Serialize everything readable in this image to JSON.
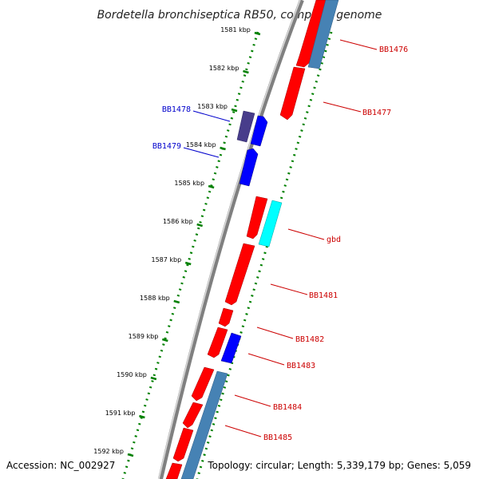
{
  "title": "Bordetella bronchiseptica RB50, complete genome",
  "footer": {
    "accession": "Accession: NC_002927",
    "topology": "Topology: circular; Length: 5,339,179 bp; Genes: 5,059"
  },
  "colors": {
    "forward_gene": "#ff0000",
    "reverse_gene": "#0000ff",
    "other_gene": "#4682b4",
    "rna_gene": "#00ffff",
    "dark_gene": "#483d8b",
    "backbone": "#808080",
    "tick_mark": "#008000",
    "label_forward": "#cc0000",
    "label_reverse": "#0000cc"
  },
  "ticks": [
    {
      "kbp": 1581,
      "label": "1581 kbp"
    },
    {
      "kbp": 1582,
      "label": "1582 kbp"
    },
    {
      "kbp": 1583,
      "label": "1583 kbp"
    },
    {
      "kbp": 1584,
      "label": "1584 kbp"
    },
    {
      "kbp": 1585,
      "label": "1585 kbp"
    },
    {
      "kbp": 1586,
      "label": "1586 kbp"
    },
    {
      "kbp": 1587,
      "label": "1587 kbp"
    },
    {
      "kbp": 1588,
      "label": "1588 kbp"
    },
    {
      "kbp": 1589,
      "label": "1589 kbp"
    },
    {
      "kbp": 1590,
      "label": "1590 kbp"
    },
    {
      "kbp": 1591,
      "label": "1591 kbp"
    },
    {
      "kbp": 1592,
      "label": "1592 kbp"
    }
  ],
  "genes": [
    {
      "name": "BB1476",
      "kbp": 1581.5
    },
    {
      "name": "BB1477",
      "kbp": 1582.5
    },
    {
      "name": "BB1478",
      "kbp": 1583.3
    },
    {
      "name": "BB1479",
      "kbp": 1584.2
    },
    {
      "name": "gbd",
      "kbp": 1586.4
    },
    {
      "name": "BB1481",
      "kbp": 1587.7
    },
    {
      "name": "BB1482",
      "kbp": 1588.8
    },
    {
      "name": "BB1483",
      "kbp": 1589.4
    },
    {
      "name": "BB1484",
      "kbp": 1590.5
    },
    {
      "name": "BB1485",
      "kbp": 1591.4
    }
  ]
}
